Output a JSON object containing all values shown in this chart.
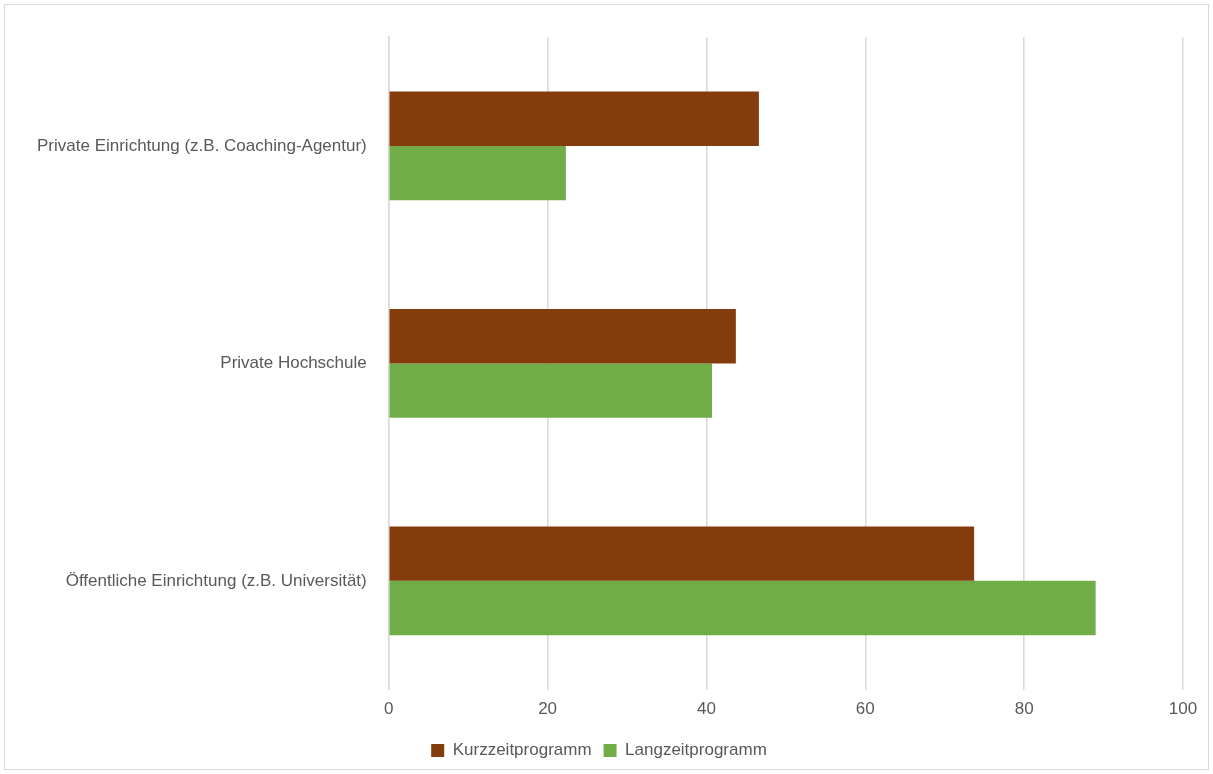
{
  "chart_data": {
    "type": "bar",
    "orientation": "horizontal",
    "categories": [
      "Private Einrichtung (z.B. Coaching-Agentur)",
      "Private Hochschule",
      "Öffentliche Einrichtung (z.B. Universität)"
    ],
    "series": [
      {
        "name": "Kurzzeitprogramm",
        "color": "#843c0c",
        "values": [
          46.6,
          43.7,
          73.7
        ]
      },
      {
        "name": "Langzeitprogramm",
        "color": "#70ad47",
        "values": [
          22.3,
          40.7,
          89.0
        ]
      }
    ],
    "xlim": [
      0,
      100
    ],
    "xticks": [
      0,
      20,
      40,
      60,
      80,
      100
    ],
    "grid": "x",
    "legend": "bottom"
  }
}
